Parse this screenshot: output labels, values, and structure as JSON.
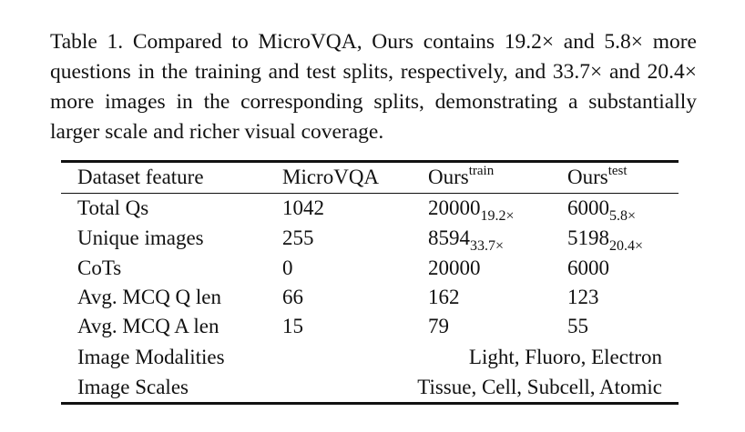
{
  "caption": "Table 1. Compared to MicroVQA, Ours contains 19.2× and 5.8× more questions in the training and test splits, respectively, and 33.7× and 20.4× more images in the corresponding splits, demon­strating a substantially larger scale and richer visual coverage.",
  "table": {
    "header": [
      {
        "text": "Dataset feature"
      },
      {
        "text": "MicroVQA"
      },
      {
        "text": "Ours",
        "sup": "train"
      },
      {
        "text": "Ours",
        "sup": "test"
      }
    ],
    "rows": [
      [
        {
          "text": "Total Qs"
        },
        {
          "text": "1042"
        },
        {
          "text": "20000",
          "sub": "19.2×"
        },
        {
          "text": "6000",
          "sub": "5.8×"
        }
      ],
      [
        {
          "text": "Unique images"
        },
        {
          "text": "255"
        },
        {
          "text": "8594",
          "sub": "33.7×"
        },
        {
          "text": "5198",
          "sub": "20.4×"
        }
      ],
      [
        {
          "text": "CoTs"
        },
        {
          "text": "0"
        },
        {
          "text": "20000"
        },
        {
          "text": "6000"
        }
      ],
      [
        {
          "text": "Avg. MCQ Q len"
        },
        {
          "text": "66"
        },
        {
          "text": "162"
        },
        {
          "text": "123"
        }
      ],
      [
        {
          "text": "Avg. MCQ A len"
        },
        {
          "text": "15"
        },
        {
          "text": "79"
        },
        {
          "text": "55"
        }
      ]
    ],
    "span_rows": [
      {
        "label": "Image Modalities",
        "value": "Light, Fluoro, Electron"
      },
      {
        "label": "Image Scales",
        "value": "Tissue, Cell, Subcell, Atomic"
      }
    ]
  }
}
